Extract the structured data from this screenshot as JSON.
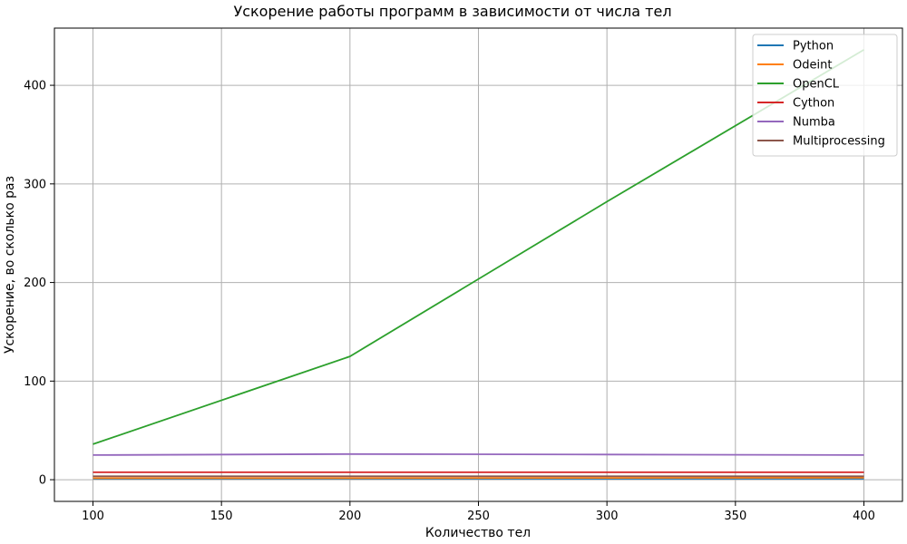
{
  "chart_data": {
    "type": "line",
    "title": "Ускорение работы программ в зависимости от числа тел",
    "xlabel": "Количество тел",
    "ylabel": "Ускорение, во сколько раз",
    "x": [
      100,
      200,
      300,
      400
    ],
    "xlim": [
      85,
      415
    ],
    "ylim": [
      -22,
      458
    ],
    "xticks": [
      100,
      150,
      200,
      250,
      300,
      350,
      400
    ],
    "xtick_labels": [
      "100",
      "150",
      "200",
      "250",
      "300",
      "350",
      "400"
    ],
    "yticks": [
      0,
      100,
      200,
      300,
      400
    ],
    "ytick_labels": [
      "0",
      "100",
      "200",
      "300",
      "400"
    ],
    "grid": true,
    "legend_position": "top-right",
    "series": [
      {
        "name": "Python",
        "color": "#1f77b4",
        "values": [
          1,
          1,
          1,
          1
        ]
      },
      {
        "name": "Odeint",
        "color": "#ff7f0e",
        "values": [
          1.5,
          1.5,
          1.8,
          2.0
        ]
      },
      {
        "name": "OpenCL",
        "color": "#2ca02c",
        "values": [
          36,
          125,
          282,
          436
        ]
      },
      {
        "name": "Cython",
        "color": "#d62728",
        "values": [
          7.5,
          7.5,
          7.5,
          7.5
        ]
      },
      {
        "name": "Numba",
        "color": "#9467bd",
        "values": [
          25,
          26,
          25.5,
          25
        ]
      },
      {
        "name": "Multiprocessing",
        "color": "#8c564b",
        "values": [
          3.5,
          3.5,
          3.5,
          3.5
        ]
      }
    ]
  }
}
